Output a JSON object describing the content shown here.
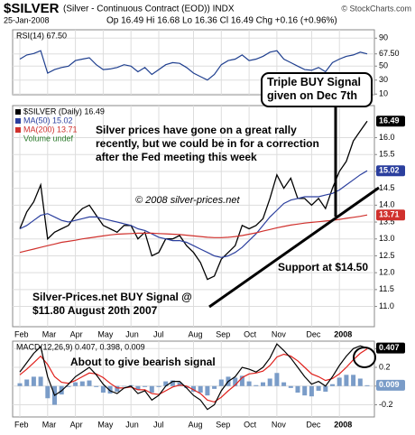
{
  "header": {
    "title": "$SILVER",
    "subtitle": "(Silver - Continuous Contract (EOD)) INDX",
    "source": "© StockCharts.com",
    "date": "25-Jan-2008",
    "quote": "Op 16.49 Hi 16.68 Lo 16.36 Cl 16.49 Chg +0.16 (+0.96%)"
  },
  "chart_data": [
    {
      "type": "line",
      "title": "RSI(14) 67.50",
      "ylim": [
        9,
        102
      ],
      "yticks": [
        10,
        30,
        50,
        {
          "value": 67.5,
          "label": "67.50"
        },
        90
      ],
      "grid": true,
      "categories": [
        "Feb",
        null,
        null,
        null,
        "Mar",
        null,
        null,
        null,
        "Apr",
        null,
        null,
        null,
        "May",
        null,
        null,
        null,
        "Jun",
        null,
        null,
        null,
        "Jul",
        null,
        null,
        null,
        null,
        "Aug",
        null,
        null,
        null,
        "Sep",
        null,
        null,
        null,
        "Oct",
        null,
        null,
        null,
        "Nov",
        null,
        null,
        null,
        null,
        "Dec",
        null,
        null,
        null,
        "2008",
        null,
        null,
        null,
        null
      ],
      "series": [
        {
          "color": "#1f3f8f",
          "values": [
            60,
            66,
            68,
            72,
            40,
            45,
            48,
            50,
            58,
            60,
            62,
            52,
            45,
            46,
            48,
            52,
            50,
            42,
            48,
            38,
            45,
            52,
            55,
            54,
            48,
            40,
            35,
            30,
            38,
            52,
            58,
            60,
            66,
            58,
            60,
            64,
            70,
            72,
            60,
            55,
            50,
            45,
            44,
            48,
            42,
            55,
            60,
            64,
            66,
            70,
            67.5
          ]
        }
      ]
    },
    {
      "type": "line",
      "ylim": [
        10.4,
        16.95
      ],
      "yticks": [
        {
          "value": 11,
          "label": "11.0"
        },
        11.5,
        {
          "value": 12,
          "label": "12.0"
        },
        12.5,
        {
          "value": 13,
          "label": "13.0"
        },
        13.5,
        {
          "value": 14,
          "label": "14.0"
        },
        14.5,
        {
          "value": 15,
          "label": "15.0"
        },
        15.5,
        {
          "value": 16,
          "label": "16.0"
        }
      ],
      "grid": true,
      "xlabels": true,
      "categories": [
        "Feb",
        null,
        null,
        null,
        "Mar",
        null,
        null,
        null,
        "Apr",
        null,
        null,
        null,
        "May",
        null,
        null,
        null,
        "Jun",
        null,
        null,
        null,
        "Jul",
        null,
        null,
        null,
        null,
        "Aug",
        null,
        null,
        null,
        "Sep",
        null,
        null,
        null,
        "Oct",
        null,
        null,
        null,
        "Nov",
        null,
        null,
        null,
        null,
        "Dec",
        null,
        null,
        null,
        "2008",
        null,
        null,
        null,
        null
      ],
      "series": [
        {
          "name": "$SILVER (Daily) 16.49",
          "color": "#000000",
          "tag": true,
          "values": [
            13.3,
            13.8,
            14.1,
            14.6,
            13.0,
            13.2,
            13.3,
            13.4,
            13.7,
            13.9,
            14.0,
            13.7,
            13.4,
            13.3,
            13.2,
            13.4,
            13.4,
            13.0,
            13.2,
            12.5,
            12.6,
            13.0,
            13.0,
            13.1,
            12.8,
            12.6,
            12.3,
            11.8,
            11.9,
            12.4,
            12.6,
            12.8,
            13.4,
            13.3,
            13.4,
            13.6,
            14.2,
            14.9,
            14.5,
            14.8,
            14.2,
            14.2,
            14.0,
            14.2,
            13.9,
            14.5,
            15.0,
            15.3,
            15.9,
            16.2,
            16.49
          ]
        },
        {
          "name": "MA(50) 15.02",
          "color": "#2b3f9e",
          "tag": true,
          "values": [
            13.3,
            13.4,
            13.55,
            13.7,
            13.75,
            13.65,
            13.55,
            13.5,
            13.55,
            13.6,
            13.65,
            13.65,
            13.6,
            13.55,
            13.5,
            13.45,
            13.4,
            13.3,
            13.25,
            13.15,
            13.05,
            13.0,
            12.95,
            12.95,
            12.9,
            12.8,
            12.7,
            12.6,
            12.5,
            12.45,
            12.5,
            12.6,
            12.75,
            12.95,
            13.15,
            13.4,
            13.65,
            13.85,
            14.05,
            14.15,
            14.2,
            14.25,
            14.25,
            14.25,
            14.3,
            14.35,
            14.45,
            14.6,
            14.75,
            14.9,
            15.02
          ]
        },
        {
          "name": "MA(200) 13.71",
          "color": "#d0312d",
          "tag": true,
          "values": [
            12.6,
            12.65,
            12.7,
            12.75,
            12.8,
            12.85,
            12.9,
            12.93,
            12.96,
            13.0,
            13.03,
            13.06,
            13.09,
            13.12,
            13.14,
            13.15,
            13.16,
            13.17,
            13.17,
            13.17,
            13.16,
            13.15,
            13.14,
            13.13,
            13.11,
            13.09,
            13.07,
            13.05,
            13.04,
            13.04,
            13.05,
            13.07,
            13.1,
            13.14,
            13.18,
            13.23,
            13.28,
            13.33,
            13.37,
            13.41,
            13.44,
            13.47,
            13.49,
            13.51,
            13.53,
            13.55,
            13.58,
            13.61,
            13.64,
            13.67,
            13.71
          ]
        }
      ],
      "legend_notes": [
        "Volume undef"
      ],
      "annotations": [
        "Triple BUY Signal given on Dec 7th",
        "Silver prices have gone on a great rally recently, but we could be in for a correction after the Fed meeting this week",
        "© 2008 silver-prices.net",
        "Support at $14.50",
        "Silver-Prices.net BUY Signal @ $11.80 August 20th 2007"
      ]
    },
    {
      "type": "line",
      "title": "MACD(12,26,9) 0.407, 0.398, 0.009",
      "ylim": [
        -0.33,
        0.48
      ],
      "yticks": [
        -0.2,
        {
          "value": 0,
          "label": "0.0"
        },
        0.2,
        0.4
      ],
      "grid": true,
      "xlabels": true,
      "categories": [
        "Feb",
        null,
        null,
        null,
        "Mar",
        null,
        null,
        null,
        "Apr",
        null,
        null,
        null,
        "May",
        null,
        null,
        null,
        "Jun",
        null,
        null,
        null,
        "Jul",
        null,
        null,
        null,
        null,
        "Aug",
        null,
        null,
        null,
        "Sep",
        null,
        null,
        null,
        "Oct",
        null,
        null,
        null,
        "Nov",
        null,
        null,
        null,
        null,
        "Dec",
        null,
        null,
        null,
        "2008",
        null,
        null,
        null,
        null
      ],
      "series": [
        {
          "color": "#7a9cc8",
          "kind": "bar",
          "tag": true,
          "values": [
            0.03,
            0.07,
            0.1,
            0.1,
            -0.13,
            -0.2,
            -0.09,
            -0.01,
            0.04,
            0.05,
            0.06,
            -0.01,
            -0.07,
            -0.08,
            -0.06,
            0.0,
            0.01,
            -0.04,
            -0.01,
            -0.07,
            -0.01,
            0.05,
            0.06,
            0.04,
            -0.02,
            -0.06,
            -0.07,
            -0.1,
            -0.03,
            0.07,
            0.1,
            0.09,
            0.11,
            0.05,
            0.01,
            0.04,
            0.08,
            0.14,
            0.04,
            -0.02,
            -0.07,
            -0.1,
            -0.11,
            -0.05,
            -0.06,
            0.02,
            0.09,
            0.12,
            0.12,
            0.08,
            0.009
          ]
        },
        {
          "color": "#e0201b",
          "values": [
            0.12,
            0.18,
            0.25,
            0.32,
            0.23,
            0.1,
            0.04,
            0.03,
            0.06,
            0.1,
            0.14,
            0.13,
            0.09,
            0.03,
            -0.02,
            -0.02,
            -0.01,
            -0.04,
            -0.04,
            -0.08,
            -0.09,
            -0.05,
            -0.01,
            0.01,
            0.0,
            -0.04,
            -0.08,
            -0.15,
            -0.17,
            -0.12,
            -0.05,
            0.01,
            0.09,
            0.13,
            0.14,
            0.16,
            0.22,
            0.31,
            0.34,
            0.32,
            0.27,
            0.2,
            0.13,
            0.1,
            0.06,
            0.08,
            0.13,
            0.2,
            0.28,
            0.35,
            0.398
          ]
        },
        {
          "color": "#000000",
          "tag": true,
          "values": [
            0.15,
            0.25,
            0.35,
            0.42,
            0.1,
            -0.1,
            -0.05,
            0.02,
            0.1,
            0.15,
            0.2,
            0.12,
            0.02,
            -0.05,
            -0.08,
            -0.02,
            0.0,
            -0.08,
            -0.05,
            -0.15,
            -0.1,
            0.0,
            0.05,
            0.05,
            -0.02,
            -0.1,
            -0.15,
            -0.25,
            -0.2,
            -0.05,
            0.05,
            0.1,
            0.2,
            0.18,
            0.15,
            0.2,
            0.3,
            0.45,
            0.38,
            0.3,
            0.2,
            0.1,
            0.02,
            0.05,
            0.0,
            0.1,
            0.22,
            0.32,
            0.4,
            0.43,
            0.407
          ]
        }
      ],
      "annotations": [
        "About to give bearish signal"
      ]
    }
  ]
}
